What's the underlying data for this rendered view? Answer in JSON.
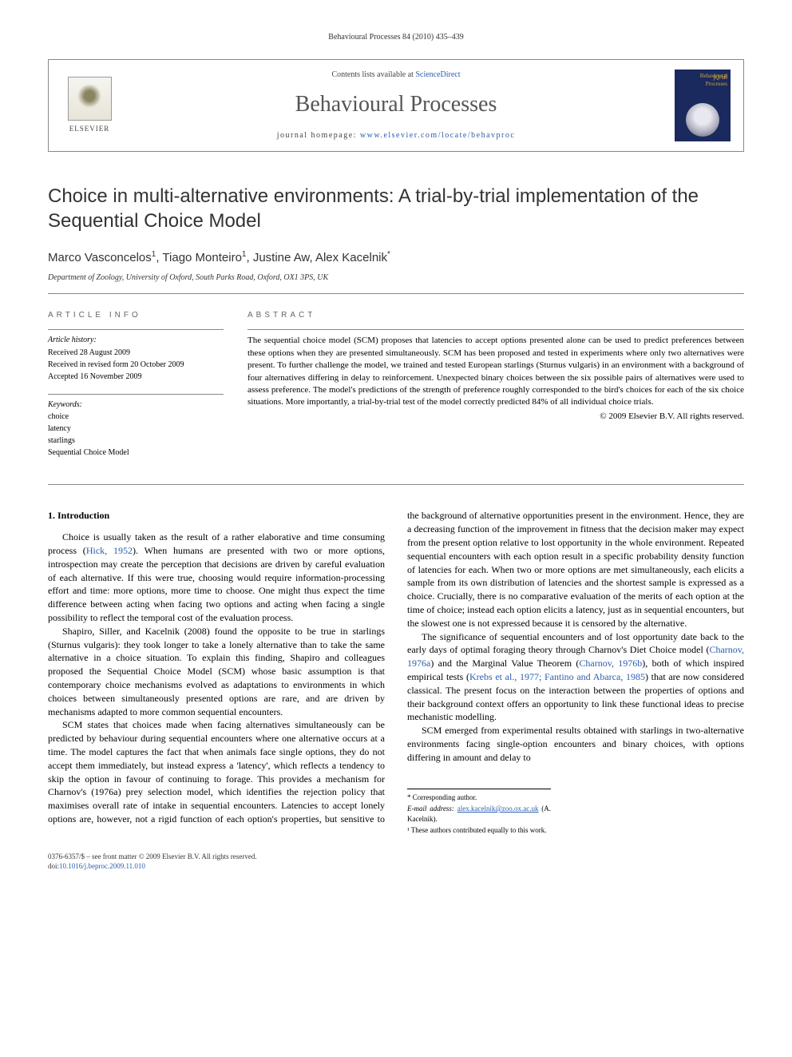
{
  "running_header": "Behavioural Processes 84 (2010) 435–439",
  "masthead": {
    "contents_prefix": "Contents lists available at ",
    "contents_link": "ScienceDirect",
    "journal_name": "Behavioural Processes",
    "homepage_prefix": "journal homepage: ",
    "homepage_url": "www.elsevier.com/locate/behavproc",
    "publisher_name": "ELSEVIER",
    "cover_title": "Behavioural Processes",
    "qab": "∫QAB"
  },
  "article": {
    "title": "Choice in multi-alternative environments: A trial-by-trial implementation of the Sequential Choice Model",
    "authors_html": "Marco Vasconcelos¹, Tiago Monteiro¹, Justine Aw, Alex Kacelnik*",
    "affiliation": "Department of Zoology, University of Oxford, South Parks Road, Oxford, OX1 3PS, UK"
  },
  "info": {
    "label": "article info",
    "history_heading": "Article history:",
    "history": [
      "Received 28 August 2009",
      "Received in revised form 20 October 2009",
      "Accepted 16 November 2009"
    ],
    "keywords_heading": "Keywords:",
    "keywords": [
      "choice",
      "latency",
      "starlings",
      "Sequential Choice Model"
    ]
  },
  "abstract": {
    "label": "abstract",
    "text": "The sequential choice model (SCM) proposes that latencies to accept options presented alone can be used to predict preferences between these options when they are presented simultaneously. SCM has been proposed and tested in experiments where only two alternatives were present. To further challenge the model, we trained and tested European starlings (Sturnus vulgaris) in an environment with a background of four alternatives differing in delay to reinforcement. Unexpected binary choices between the six possible pairs of alternatives were used to assess preference. The model's predictions of the strength of preference roughly corresponded to the bird's choices for each of the six choice situations. More importantly, a trial-by-trial test of the model correctly predicted 84% of all individual choice trials.",
    "copyright": "© 2009 Elsevier B.V. All rights reserved."
  },
  "body": {
    "section_number": "1.",
    "section_title": "Introduction",
    "p1_a": "Choice is usually taken as the result of a rather elaborative and time consuming process (",
    "p1_link": "Hick, 1952",
    "p1_b": "). When humans are presented with two or more options, introspection may create the perception that decisions are driven by careful evaluation of each alternative. If this were true, choosing would require information-processing effort and time: more options, more time to choose. One might thus expect the time difference between acting when facing two options and acting when facing a single possibility to reflect the temporal cost of the evaluation process.",
    "p2": "Shapiro, Siller, and Kacelnik (2008) found the opposite to be true in starlings (Sturnus vulgaris): they took longer to take a lonely alternative than to take the same alternative in a choice situation. To explain this finding, Shapiro and colleagues proposed the Sequential Choice Model (SCM) whose basic assumption is that contemporary choice mechanisms evolved as adaptations to environments in which choices between simultaneously presented options are rare, and are driven by mechanisms adapted to more common sequential encounters.",
    "p3": "SCM states that choices made when facing alternatives simultaneously can be predicted by behaviour during sequential encounters where one alternative occurs at a time. The model captures the fact that when animals face single options, they do not accept them immediately, but instead express a 'latency', which reflects a tendency to skip the option in favour of continuing to forage. This provides a mechanism for Charnov's (1976a) prey selection model, which identifies the rejection policy that maximises overall rate of intake in sequential encounters. Latencies to accept lonely options are, however, not a rigid function of each option's properties, but sensitive to the background of alternative opportunities present in the environment. Hence, they are a decreasing function of the improvement in fitness that the decision maker may expect from the present option relative to lost opportunity in the whole environment. Repeated sequential encounters with each option result in a specific probability density function of latencies for each. When two or more options are met simultaneously, each elicits a sample from its own distribution of latencies and the shortest sample is expressed as a choice. Crucially, there is no comparative evaluation of the merits of each option at the time of choice; instead each option elicits a latency, just as in sequential encounters, but the slowest one is not expressed because it is censored by the alternative.",
    "p4_a": "The significance of sequential encounters and of lost opportunity date back to the early days of optimal foraging theory through Charnov's Diet Choice model (",
    "p4_link1": "Charnov, 1976a",
    "p4_b": ") and the Marginal Value Theorem (",
    "p4_link2": "Charnov, 1976b",
    "p4_c": "), both of which inspired empirical tests (",
    "p4_link3": "Krebs et al., 1977; Fantino and Abarca, 1985",
    "p4_d": ") that are now considered classical. The present focus on the interaction between the properties of options and their background context offers an opportunity to link these functional ideas to precise mechanistic modelling.",
    "p5": "SCM emerged from experimental results obtained with starlings in two-alternative environments facing single-option encounters and binary choices, with options differing in amount and delay to"
  },
  "footnotes": {
    "corr": "* Corresponding author.",
    "email_label": "E-mail address: ",
    "email": "alex.kacelnik@zoo.ox.ac.uk",
    "email_who": " (A. Kacelnik).",
    "equal": "¹ These authors contributed equally to this work."
  },
  "footer": {
    "line1": "0376-6357/$ – see front matter © 2009 Elsevier B.V. All rights reserved.",
    "doi_label": "doi:",
    "doi": "10.1016/j.beproc.2009.11.010"
  },
  "colors": {
    "link": "#2a5db0",
    "text": "#000000",
    "muted": "#666666",
    "rule": "#888888",
    "journal_title": "#555555",
    "cover_bg": "#1a2a5e",
    "cover_accent": "#d4a640"
  },
  "typography": {
    "body_pt": 12,
    "title_pt": 24,
    "authors_pt": 15,
    "small_pt": 10,
    "footnote_pt": 9,
    "journal_name_pt": 28
  }
}
